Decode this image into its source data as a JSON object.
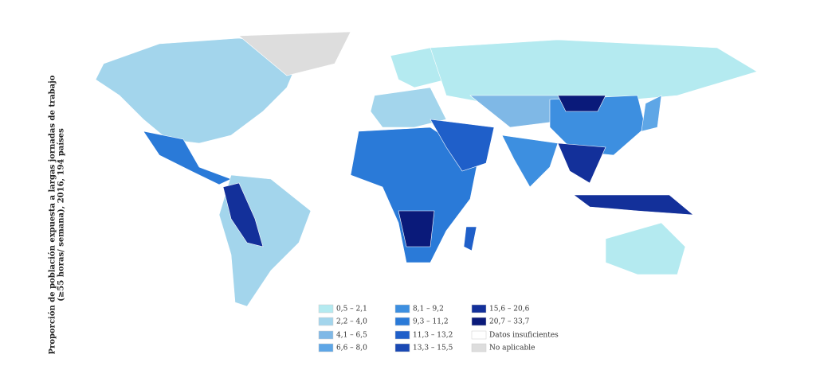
{
  "title": [
    "Proporción de población expuesta a largas jornadas de trabajo",
    "(≥55 horas/ semana), 2016, 194 países"
  ],
  "legend": [
    {
      "label": "0,5 – 2,1",
      "color": "#b4eaf0"
    },
    {
      "label": "2,2 – 4,0",
      "color": "#a3d5ec"
    },
    {
      "label": "4,1 – 6,5",
      "color": "#7fb8e6"
    },
    {
      "label": "6,6 – 8,0",
      "color": "#5ea6e6"
    },
    {
      "label": "8,1 – 9,2",
      "color": "#3d8fe0"
    },
    {
      "label": "9,3 – 11,2",
      "color": "#2a7ad8"
    },
    {
      "label": "11,3 – 13,2",
      "color": "#1f5fc9"
    },
    {
      "label": "13,3 – 15,5",
      "color": "#1a49b4"
    },
    {
      "label": "15,6 – 20,6",
      "color": "#13309a"
    },
    {
      "label": "20,7 – 33,7",
      "color": "#0a1a7a"
    },
    {
      "label": "Datos insuficientes",
      "color": "#ffffff"
    },
    {
      "label": "No aplicable",
      "color": "#dddddd"
    }
  ]
}
